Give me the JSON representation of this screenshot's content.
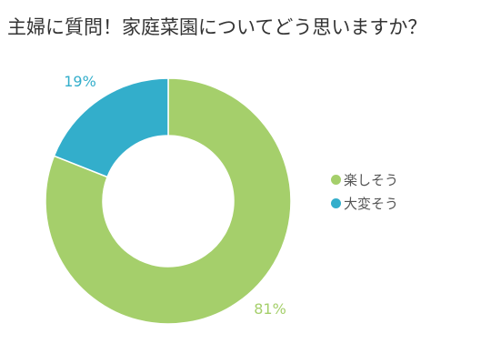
{
  "chart_data": {
    "type": "pie",
    "title": "主婦に質問！家庭菜園についてどう思いますか？",
    "slices": [
      {
        "label": "楽しそう",
        "value": 81,
        "value_label": "81%",
        "color": "#a5cf6b"
      },
      {
        "label": "大変そう",
        "value": 19,
        "value_label": "19%",
        "color": "#33aecb"
      }
    ],
    "legend_position": "right"
  }
}
